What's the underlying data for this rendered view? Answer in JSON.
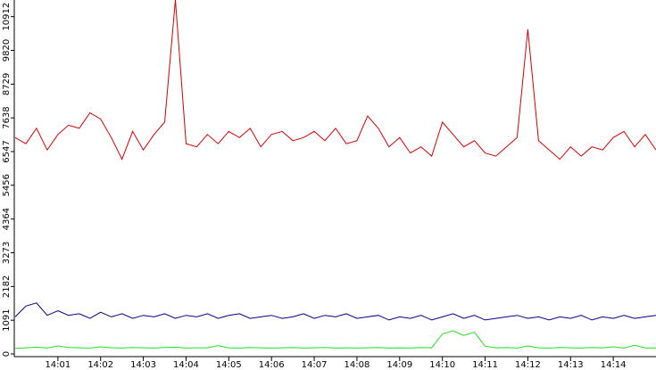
{
  "chart_data": {
    "type": "line",
    "x": [
      840,
      840.25,
      840.5,
      840.75,
      841,
      841.25,
      841.5,
      841.75,
      842,
      842.25,
      842.5,
      842.75,
      843,
      843.25,
      843.5,
      843.75,
      844,
      844.25,
      844.5,
      844.75,
      845,
      845.25,
      845.5,
      845.75,
      846,
      846.25,
      846.5,
      846.75,
      847,
      847.25,
      847.5,
      847.75,
      848,
      848.25,
      848.5,
      848.75,
      849,
      849.25,
      849.5,
      849.75,
      850,
      850.25,
      850.5,
      850.75,
      851,
      851.25,
      851.5,
      851.75,
      852,
      852.25,
      852.5,
      852.75,
      853,
      853.25,
      853.5,
      853.75,
      854,
      854.25,
      854.5,
      854.75,
      855
    ],
    "series": [
      {
        "color": "#d40000",
        "values": [
          7000,
          6800,
          7300,
          6600,
          7100,
          7400,
          7300,
          7800,
          7600,
          7000,
          6300,
          7200,
          6600,
          7100,
          7500,
          11450,
          6800,
          6700,
          7100,
          6800,
          7200,
          7000,
          7300,
          6700,
          7100,
          7200,
          6900,
          7000,
          7200,
          6900,
          7300,
          6800,
          6900,
          7700,
          7300,
          6700,
          7000,
          6500,
          6700,
          6400,
          7500,
          7100,
          6700,
          6900,
          6500,
          6400,
          6700,
          7000,
          10500,
          6900,
          6600,
          6300,
          6700,
          6400,
          6700,
          6600,
          7000,
          7200,
          6700,
          7100,
          6600
        ]
      },
      {
        "color": "#00008b",
        "values": [
          1200,
          1550,
          1650,
          1250,
          1400,
          1250,
          1300,
          1150,
          1350,
          1200,
          1300,
          1150,
          1250,
          1200,
          1300,
          1150,
          1250,
          1200,
          1300,
          1150,
          1250,
          1300,
          1150,
          1200,
          1250,
          1150,
          1200,
          1300,
          1150,
          1250,
          1200,
          1300,
          1150,
          1200,
          1250,
          1100,
          1200,
          1150,
          1250,
          1100,
          1200,
          1300,
          1150,
          1250,
          1100,
          1150,
          1200,
          1250,
          1150,
          1200,
          1100,
          1200,
          1150,
          1250,
          1100,
          1200,
          1150,
          1250,
          1150,
          1200,
          1250
        ]
      },
      {
        "color": "#22dd22",
        "values": [
          180,
          200,
          220,
          190,
          260,
          210,
          200,
          190,
          230,
          200,
          190,
          210,
          200,
          190,
          210,
          220,
          190,
          200,
          200,
          270,
          200,
          190,
          210,
          200,
          190,
          200,
          210,
          190,
          200,
          210,
          190,
          200,
          190,
          200,
          210,
          190,
          200,
          190,
          210,
          200,
          650,
          750,
          600,
          700,
          250,
          200,
          210,
          190,
          260,
          200,
          190,
          210,
          200,
          190,
          210,
          200,
          230,
          190,
          280,
          200,
          190
        ]
      }
    ],
    "xlim": [
      840,
      855
    ],
    "ylim": [
      0,
      11450
    ],
    "yticks": [
      0,
      1091,
      2182,
      3273,
      4364,
      5456,
      6547,
      7638,
      8729,
      9820,
      10912
    ],
    "xticks": [
      {
        "value": 841,
        "label": "14:01"
      },
      {
        "value": 842,
        "label": "14:02"
      },
      {
        "value": 843,
        "label": "14:03"
      },
      {
        "value": 844,
        "label": "14:04"
      },
      {
        "value": 845,
        "label": "14:05"
      },
      {
        "value": 846,
        "label": "14:06"
      },
      {
        "value": 847,
        "label": "14:07"
      },
      {
        "value": 848,
        "label": "14:08"
      },
      {
        "value": 849,
        "label": "14:09"
      },
      {
        "value": 850,
        "label": "14:10"
      },
      {
        "value": 851,
        "label": "14:11"
      },
      {
        "value": 852,
        "label": "14:12"
      },
      {
        "value": 853,
        "label": "14:13"
      },
      {
        "value": 854,
        "label": "14:14"
      }
    ]
  }
}
